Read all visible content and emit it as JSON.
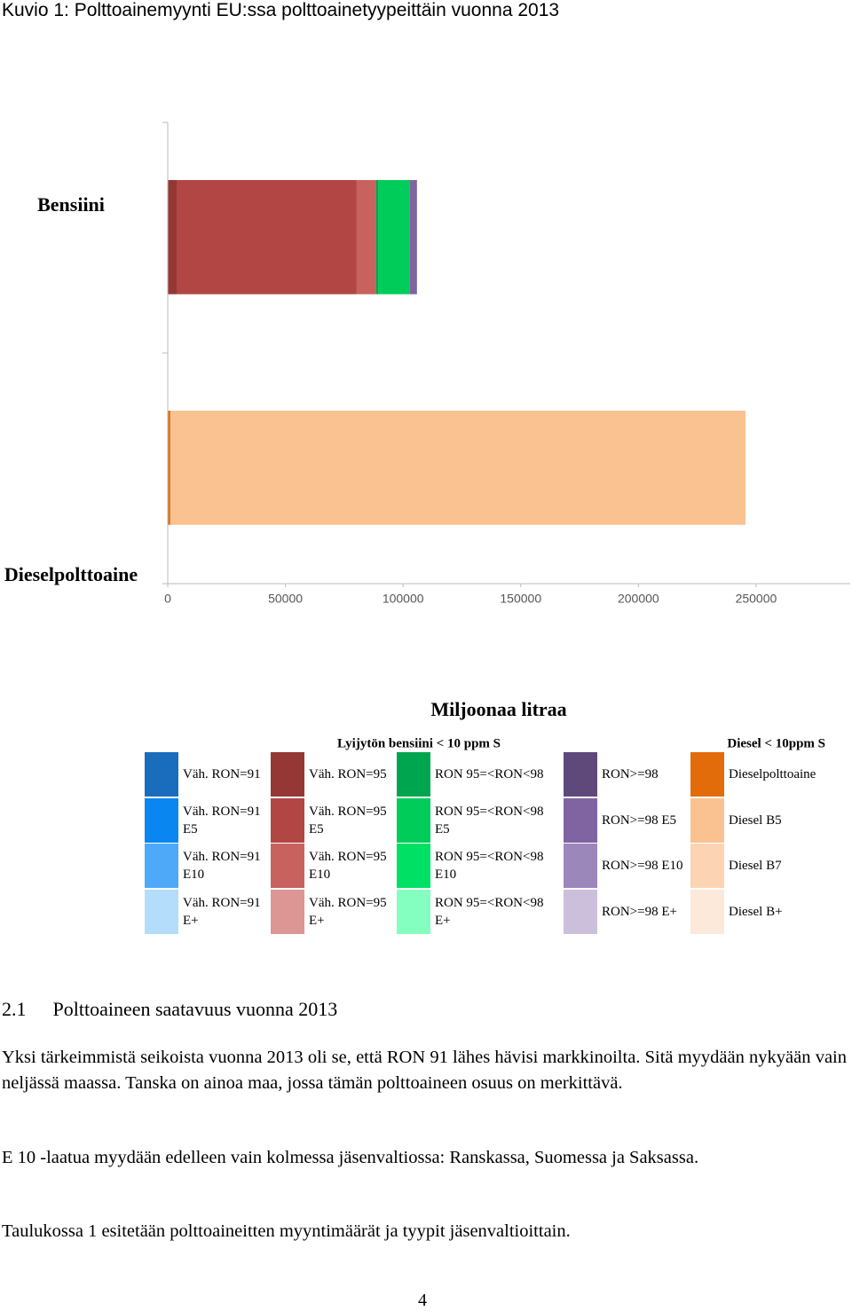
{
  "title": "Kuvio 1: Polttoainemyynti EU:ssa polttoainetyypeittäin vuonna 2013",
  "chart_data": {
    "type": "stacked-barh",
    "categories": [
      "Bensiini",
      "Dieselpolttoaine"
    ],
    "xlabel": "Miljoonaa litraa",
    "xlim": [
      0,
      290000
    ],
    "xticks": [
      0,
      50000,
      100000,
      150000,
      200000,
      250000
    ],
    "legend_groups": [
      "Lyijytön bensiini < 10 ppm S",
      "Diesel < 10ppm S"
    ],
    "series": [
      {
        "name": "Väh. RON=91",
        "color": "#1a6dbd",
        "values": [
          0,
          0
        ]
      },
      {
        "name": "Väh. RON=91 E5",
        "color": "#0a86f0",
        "values": [
          0,
          0
        ]
      },
      {
        "name": "Väh. RON=91 E10",
        "color": "#4eaaf8",
        "values": [
          0,
          0
        ]
      },
      {
        "name": "Väh. RON=91 E+",
        "color": "#b4dcfb",
        "values": [
          0,
          0
        ]
      },
      {
        "name": "Väh. RON=95",
        "color": "#953735",
        "values": [
          4100,
          0
        ]
      },
      {
        "name": "Väh. RON=95 E5",
        "color": "#b24644",
        "values": [
          76200,
          0
        ]
      },
      {
        "name": "Väh. RON=95 E10",
        "color": "#c8625f",
        "values": [
          8300,
          0
        ]
      },
      {
        "name": "Väh. RON=95 E+",
        "color": "#dc9694",
        "values": [
          0,
          0
        ]
      },
      {
        "name": "RON 95=<RON<98",
        "color": "#00a64f",
        "values": [
          800,
          0
        ]
      },
      {
        "name": "RON 95=<RON<98 E5",
        "color": "#00cc5a",
        "values": [
          13500,
          0
        ]
      },
      {
        "name": "RON 95=<RON<98 E10",
        "color": "#00e064",
        "values": [
          0,
          0
        ]
      },
      {
        "name": "RON 95=<RON<98 E+",
        "color": "#85ffc0",
        "values": [
          0,
          0
        ]
      },
      {
        "name": "RON>=98",
        "color": "#5f497a",
        "values": [
          0,
          0
        ]
      },
      {
        "name": "RON>=98 E5",
        "color": "#8064a2",
        "values": [
          3000,
          0
        ]
      },
      {
        "name": "RON>=98 E10",
        "color": "#9c87ba",
        "values": [
          0,
          0
        ]
      },
      {
        "name": "RON>=98 E+",
        "color": "#cbbfdc",
        "values": [
          0,
          0
        ]
      },
      {
        "name": "Dieselpolttoaine",
        "color": "#e36c0a",
        "values": [
          0,
          1100
        ]
      },
      {
        "name": "Diesel B5",
        "color": "#fac291",
        "values": [
          0,
          244400
        ]
      },
      {
        "name": "Diesel B7",
        "color": "#fcd4b3",
        "values": [
          0,
          0
        ]
      },
      {
        "name": "Diesel B+",
        "color": "#fde9da",
        "values": [
          0,
          0
        ]
      }
    ]
  },
  "section": {
    "number": "2.1",
    "title": "Polttoaineen saatavuus vuonna 2013"
  },
  "paragraphs": [
    "Yksi tärkeimmistä seikoista vuonna 2013 oli se, että RON 91 lähes hävisi markkinoilta. Sitä myydään nykyään vain neljässä maassa. Tanska on ainoa maa, jossa tämän polttoaineen osuus on merkittävä.",
    "E 10 -laatua myydään edelleen vain kolmessa jäsenvaltiossa: Ranskassa, Suomessa ja Saksassa.",
    "Taulukossa 1 esitetään polttoaineitten myyntimäärät ja tyypit jäsenvaltioittain."
  ],
  "page_number": "4"
}
